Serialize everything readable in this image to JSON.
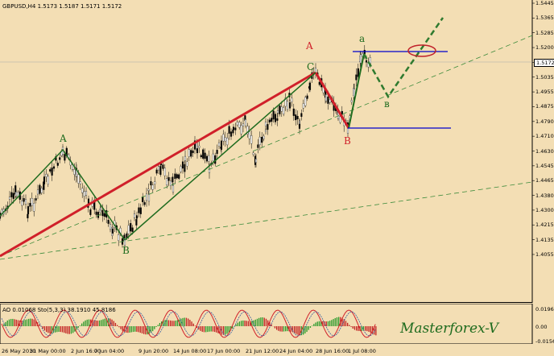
{
  "header": {
    "symbol_info": "GBPUSD,H4  1.5173 1.5187 1.5171 1.5172",
    "ao_info": "AO 0.01068  Sto(5,3,3) 38.1910 45.8186"
  },
  "price_axis": {
    "labels": [
      "1.5445",
      "1.5365",
      "1.5285",
      "1.5200",
      "1.5120",
      "1.5035",
      "1.4955",
      "1.4875",
      "1.4790",
      "1.4710",
      "1.4630",
      "1.4545",
      "1.4465",
      "1.4380",
      "1.4300",
      "1.4215",
      "1.4135",
      "1.4055"
    ],
    "current_price": "1.5172"
  },
  "ao_axis": {
    "labels": [
      "0.01967",
      "0.00",
      "-0.0156"
    ]
  },
  "time_axis": {
    "labels": [
      "26 May 2010",
      "31 May 00:00",
      "2 Jun 16:00",
      "7 Jun 04:00",
      "9 Jun 20:00",
      "14 Jun 08:00",
      "17 Jun 00:00",
      "21 Jun 12:00",
      "24 Jun 04:00",
      "28 Jun 16:00",
      "1 Jul 08:00"
    ]
  },
  "wave_labels": {
    "left_A": "A",
    "left_B": "B",
    "right_A": "A",
    "right_B": "B",
    "C": "C",
    "a": "a",
    "b": "в"
  },
  "brand": "Masterforex-V",
  "colors": {
    "background": "#f3deb4",
    "bull_wave": "#d0202a",
    "green_wave": "#1e6b1e",
    "dashed_trend": "#3a8a3a",
    "level_line": "#0000cc",
    "target_ellipse": "#c0202a"
  }
}
